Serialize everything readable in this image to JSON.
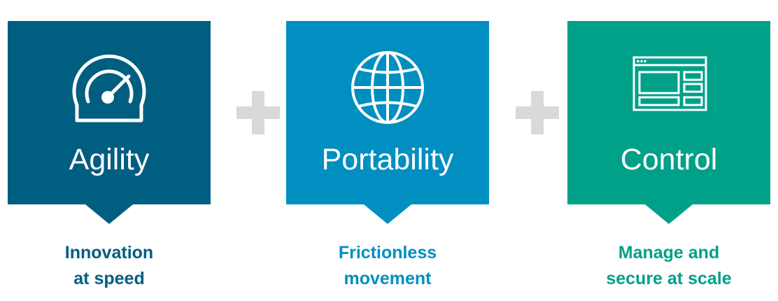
{
  "cards": [
    {
      "title": "Agility",
      "icon": "speedometer-icon",
      "color": "#005e80",
      "caption_lines": [
        "Innovation",
        "at speed"
      ]
    },
    {
      "title": "Portability",
      "icon": "globe-icon",
      "color": "#008fc0",
      "caption_lines": [
        "Frictionless",
        "movement"
      ]
    },
    {
      "title": "Control",
      "icon": "browser-window-icon",
      "color": "#00a089",
      "caption_lines": [
        "Manage and",
        "secure at scale"
      ]
    }
  ],
  "operator": "plus-icon"
}
